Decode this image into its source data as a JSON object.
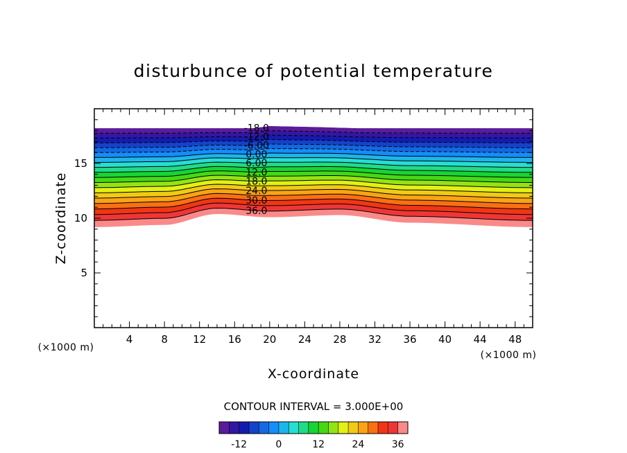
{
  "chart_data": {
    "type": "contour",
    "title": "disturbunce of potential temperature",
    "xlabel": "X-coordinate",
    "ylabel": "Z-coordinate",
    "x_unit": "(×1000 m)",
    "z_unit": "(×1000 m)",
    "xlim": [
      0,
      50
    ],
    "ylim": [
      0,
      20
    ],
    "x_ticks": [
      4,
      8,
      12,
      16,
      20,
      24,
      28,
      32,
      36,
      40,
      44,
      48
    ],
    "y_ticks": [
      5,
      10,
      15
    ],
    "grid": false,
    "contour_interval_label": "CONTOUR INTERVAL = 3.000E+00",
    "contour_interval": 3,
    "value_range": [
      -18,
      39
    ],
    "contour_labels": [
      "-18.0",
      "-12.0",
      "-6.00",
      "0.00",
      "6.00",
      "12.0",
      "18.0",
      "24.0",
      "30.0",
      "36.0"
    ],
    "top_boundary_z": [
      [
        0,
        18.2
      ],
      [
        10,
        18.2
      ],
      [
        18,
        18.2
      ],
      [
        20,
        18.4
      ],
      [
        26,
        18.3
      ],
      [
        30,
        18.2
      ],
      [
        50,
        18.2
      ]
    ],
    "bottom_boundary_z": [
      [
        0,
        9.2
      ],
      [
        8,
        9.4
      ],
      [
        14,
        10.4
      ],
      [
        20,
        10.1
      ],
      [
        28,
        10.3
      ],
      [
        36,
        9.6
      ],
      [
        50,
        9.2
      ]
    ],
    "colorbar": {
      "ticks": [
        "-12",
        "0",
        "12",
        "24",
        "36"
      ],
      "tick_values": [
        -12,
        0,
        12,
        24,
        36
      ],
      "min": -18,
      "max": 39
    }
  }
}
